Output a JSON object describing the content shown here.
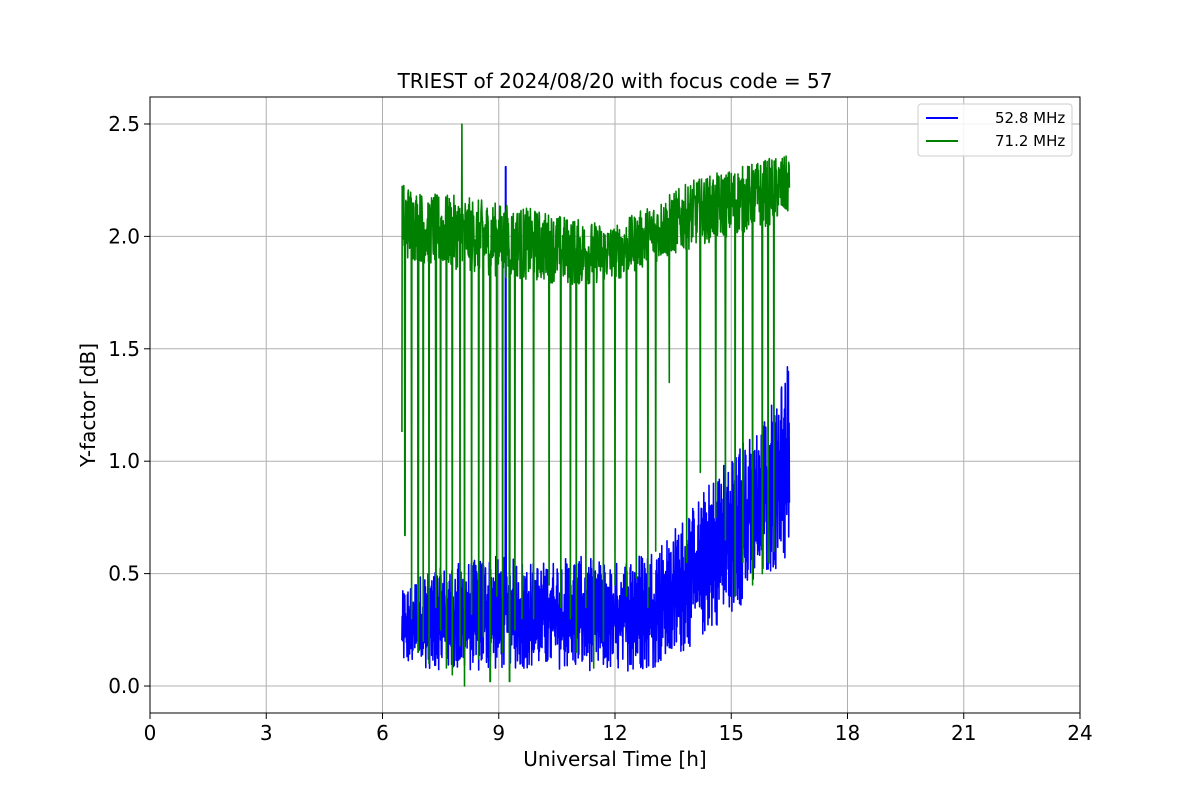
{
  "chart_data": {
    "type": "line",
    "title": "TRIEST of 2024/08/20 with focus code = 57",
    "xlabel": "Universal Time [h]",
    "ylabel": "Y-factor [dB]",
    "xlim": [
      0,
      24
    ],
    "ylim": [
      -0.12,
      2.62
    ],
    "xticks": [
      0,
      3,
      6,
      9,
      12,
      15,
      18,
      21,
      24
    ],
    "xtick_labels": [
      "0",
      "3",
      "6",
      "9",
      "12",
      "15",
      "18",
      "21",
      "24"
    ],
    "yticks": [
      0.0,
      0.5,
      1.0,
      1.5,
      2.0,
      2.5
    ],
    "ytick_labels": [
      "0.0",
      "0.5",
      "1.0",
      "1.5",
      "2.0",
      "2.5"
    ],
    "grid": true,
    "legend_position": "top-right",
    "time_range": [
      6.5,
      16.5
    ],
    "series": [
      {
        "name": "52.8 MHz",
        "color": "#0000ff",
        "envelope": {
          "x": [
            6.5,
            7.0,
            8.0,
            9.0,
            10.0,
            11.0,
            12.0,
            13.0,
            13.5,
            14.0,
            14.5,
            15.0,
            15.5,
            16.0,
            16.5
          ],
          "low": [
            0.1,
            0.08,
            0.06,
            0.07,
            0.08,
            0.07,
            0.06,
            0.08,
            0.12,
            0.18,
            0.25,
            0.32,
            0.4,
            0.5,
            0.55
          ],
          "high": [
            0.42,
            0.5,
            0.55,
            0.58,
            0.55,
            0.58,
            0.55,
            0.62,
            0.7,
            0.8,
            0.92,
            1.05,
            1.12,
            1.25,
            1.42
          ]
        },
        "spikes": [
          {
            "x": 9.18,
            "y": 2.31
          },
          {
            "x": 16.3,
            "y": 1.33
          },
          {
            "x": 16.45,
            "y": 1.42
          }
        ]
      },
      {
        "name": "71.2 MHz",
        "color": "#008000",
        "envelope": {
          "x": [
            6.5,
            7.0,
            8.0,
            9.0,
            10.0,
            11.0,
            12.0,
            13.0,
            14.0,
            15.0,
            16.0,
            16.5
          ],
          "low": [
            1.9,
            1.88,
            1.85,
            1.82,
            1.8,
            1.78,
            1.8,
            1.88,
            1.95,
            2.0,
            2.05,
            2.1
          ],
          "high": [
            2.25,
            2.2,
            2.18,
            2.15,
            2.12,
            2.08,
            2.05,
            2.15,
            2.25,
            2.3,
            2.35,
            2.36
          ]
        },
        "dropouts": [
          {
            "x": 6.5,
            "y": 1.13
          },
          {
            "x": 6.58,
            "y": 0.67
          },
          {
            "x": 6.75,
            "y": 0.3
          },
          {
            "x": 6.92,
            "y": 0.15
          },
          {
            "x": 7.05,
            "y": 0.2
          },
          {
            "x": 7.2,
            "y": 0.1
          },
          {
            "x": 7.38,
            "y": 0.35
          },
          {
            "x": 7.5,
            "y": 0.25
          },
          {
            "x": 7.65,
            "y": 0.08
          },
          {
            "x": 7.8,
            "y": 0.05
          },
          {
            "x": 8.0,
            "y": 0.18
          },
          {
            "x": 8.12,
            "y": 0.0
          },
          {
            "x": 8.3,
            "y": 0.32
          },
          {
            "x": 8.48,
            "y": 0.12
          },
          {
            "x": 8.6,
            "y": 0.22
          },
          {
            "x": 8.78,
            "y": 0.02
          },
          {
            "x": 8.95,
            "y": 0.4
          },
          {
            "x": 9.1,
            "y": 0.15
          },
          {
            "x": 9.28,
            "y": 0.02
          },
          {
            "x": 9.42,
            "y": 0.25
          },
          {
            "x": 9.6,
            "y": 0.3
          },
          {
            "x": 9.9,
            "y": 0.3
          },
          {
            "x": 10.3,
            "y": 0.45
          },
          {
            "x": 10.6,
            "y": 0.35
          },
          {
            "x": 10.85,
            "y": 0.3
          },
          {
            "x": 11.0,
            "y": 0.15
          },
          {
            "x": 11.25,
            "y": 0.35
          },
          {
            "x": 11.45,
            "y": 0.08
          },
          {
            "x": 11.7,
            "y": 0.2
          },
          {
            "x": 12.0,
            "y": 0.45
          },
          {
            "x": 12.3,
            "y": 0.4
          },
          {
            "x": 12.55,
            "y": 0.48
          },
          {
            "x": 12.85,
            "y": 0.35
          },
          {
            "x": 13.05,
            "y": 0.6
          },
          {
            "x": 13.4,
            "y": 1.35
          },
          {
            "x": 13.85,
            "y": 0.55
          },
          {
            "x": 14.2,
            "y": 0.95
          },
          {
            "x": 14.6,
            "y": 0.75
          },
          {
            "x": 14.85,
            "y": 0.65
          },
          {
            "x": 15.1,
            "y": 0.4
          },
          {
            "x": 15.3,
            "y": 0.55
          },
          {
            "x": 15.55,
            "y": 0.45
          },
          {
            "x": 15.8,
            "y": 0.5
          },
          {
            "x": 15.95,
            "y": 0.55
          },
          {
            "x": 16.1,
            "y": 0.6
          }
        ],
        "spikes": [
          {
            "x": 8.05,
            "y": 2.5
          }
        ]
      }
    ]
  }
}
